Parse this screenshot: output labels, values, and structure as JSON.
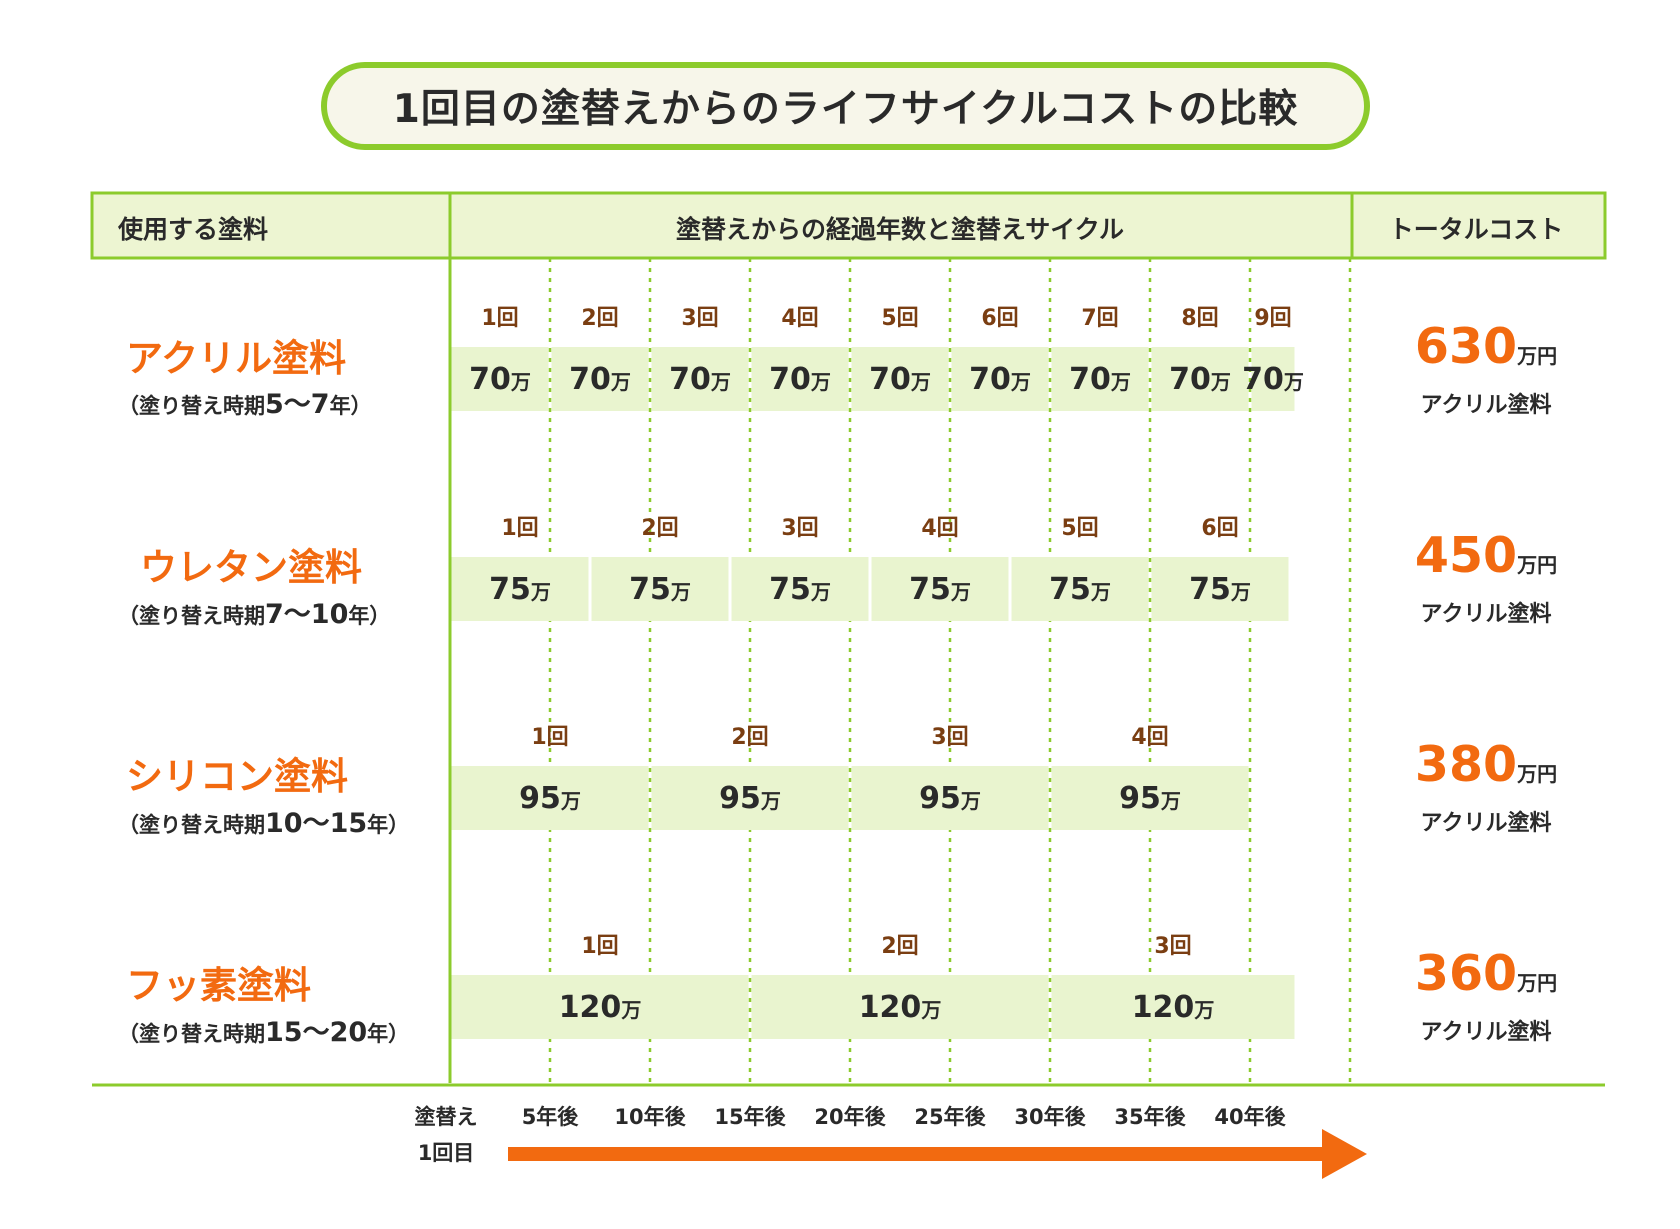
{
  "title": "1回目の塗替えからのライフサイクルコストの比較",
  "header": {
    "col_paint": "使用する塗料",
    "col_timeline": "塗替えからの経過年数と塗替えサイクル",
    "col_total": "トータルコスト"
  },
  "axis": {
    "start_line1": "塗替え",
    "start_line2": "1回目",
    "ticks": [
      "5年後",
      "10年後",
      "15年後",
      "20年後",
      "25年後",
      "30年後",
      "35年後",
      "40年後"
    ]
  },
  "rows": [
    {
      "name": "アクリル塗料",
      "period_prefix": "（塗り替え時期",
      "period_range": "5～7",
      "period_suffix": "年）",
      "total_value": "630",
      "total_unit": "万円",
      "total_label": "アクリル塗料"
    },
    {
      "name": "ウレタン塗料",
      "period_prefix": "（塗り替え時期",
      "period_range": "7～10",
      "period_suffix": "年）",
      "total_value": "450",
      "total_unit": "万円",
      "total_label": "アクリル塗料"
    },
    {
      "name": "シリコン塗料",
      "period_prefix": "（塗り替え時期",
      "period_range": "10～15",
      "period_suffix": "年）",
      "total_value": "380",
      "total_unit": "万円",
      "total_label": "アクリル塗料"
    },
    {
      "name": "フッ素塗料",
      "period_prefix": "（塗り替え時期",
      "period_range": "15～20",
      "period_suffix": "年）",
      "total_value": "360",
      "total_unit": "万円",
      "total_label": "アクリル塗料"
    }
  ],
  "colors": {
    "green_border": "#8ccb2c",
    "header_bg": "#edf5d2",
    "cell_bg": "#e9f4cf",
    "orange": "#f26a10",
    "count_label": "#7a3e12",
    "text": "#2a2a2a"
  },
  "chart_data": {
    "type": "bar",
    "x_ticks": [
      "5年後",
      "10年後",
      "15年後",
      "20年後",
      "25年後",
      "30年後",
      "35年後",
      "40年後"
    ],
    "xlim_years": [
      0,
      45
    ],
    "series": [
      {
        "name": "アクリル塗料",
        "cycle_years": 5,
        "count_labels": [
          "1回",
          "2回",
          "3回",
          "4回",
          "5回",
          "6回",
          "7回",
          "8回",
          "9回"
        ],
        "cost_value": "70",
        "cost_unit": "万",
        "costs": [
          70,
          70,
          70,
          70,
          70,
          70,
          70,
          70,
          70
        ]
      },
      {
        "name": "ウレタン塗料",
        "cycle_years": 7,
        "count_labels": [
          "1回",
          "2回",
          "3回",
          "4回",
          "5回",
          "6回"
        ],
        "cost_value": "75",
        "cost_unit": "万",
        "costs": [
          75,
          75,
          75,
          75,
          75,
          75
        ]
      },
      {
        "name": "シリコン塗料",
        "cycle_years": 10,
        "count_labels": [
          "1回",
          "2回",
          "3回",
          "4回"
        ],
        "cost_value": "95",
        "cost_unit": "万",
        "costs": [
          95,
          95,
          95,
          95
        ]
      },
      {
        "name": "フッ素塗料",
        "cycle_years": 15,
        "count_labels": [
          "1回",
          "2回",
          "3回"
        ],
        "cost_value": "120",
        "cost_unit": "万",
        "costs": [
          120,
          120,
          120
        ]
      }
    ]
  }
}
